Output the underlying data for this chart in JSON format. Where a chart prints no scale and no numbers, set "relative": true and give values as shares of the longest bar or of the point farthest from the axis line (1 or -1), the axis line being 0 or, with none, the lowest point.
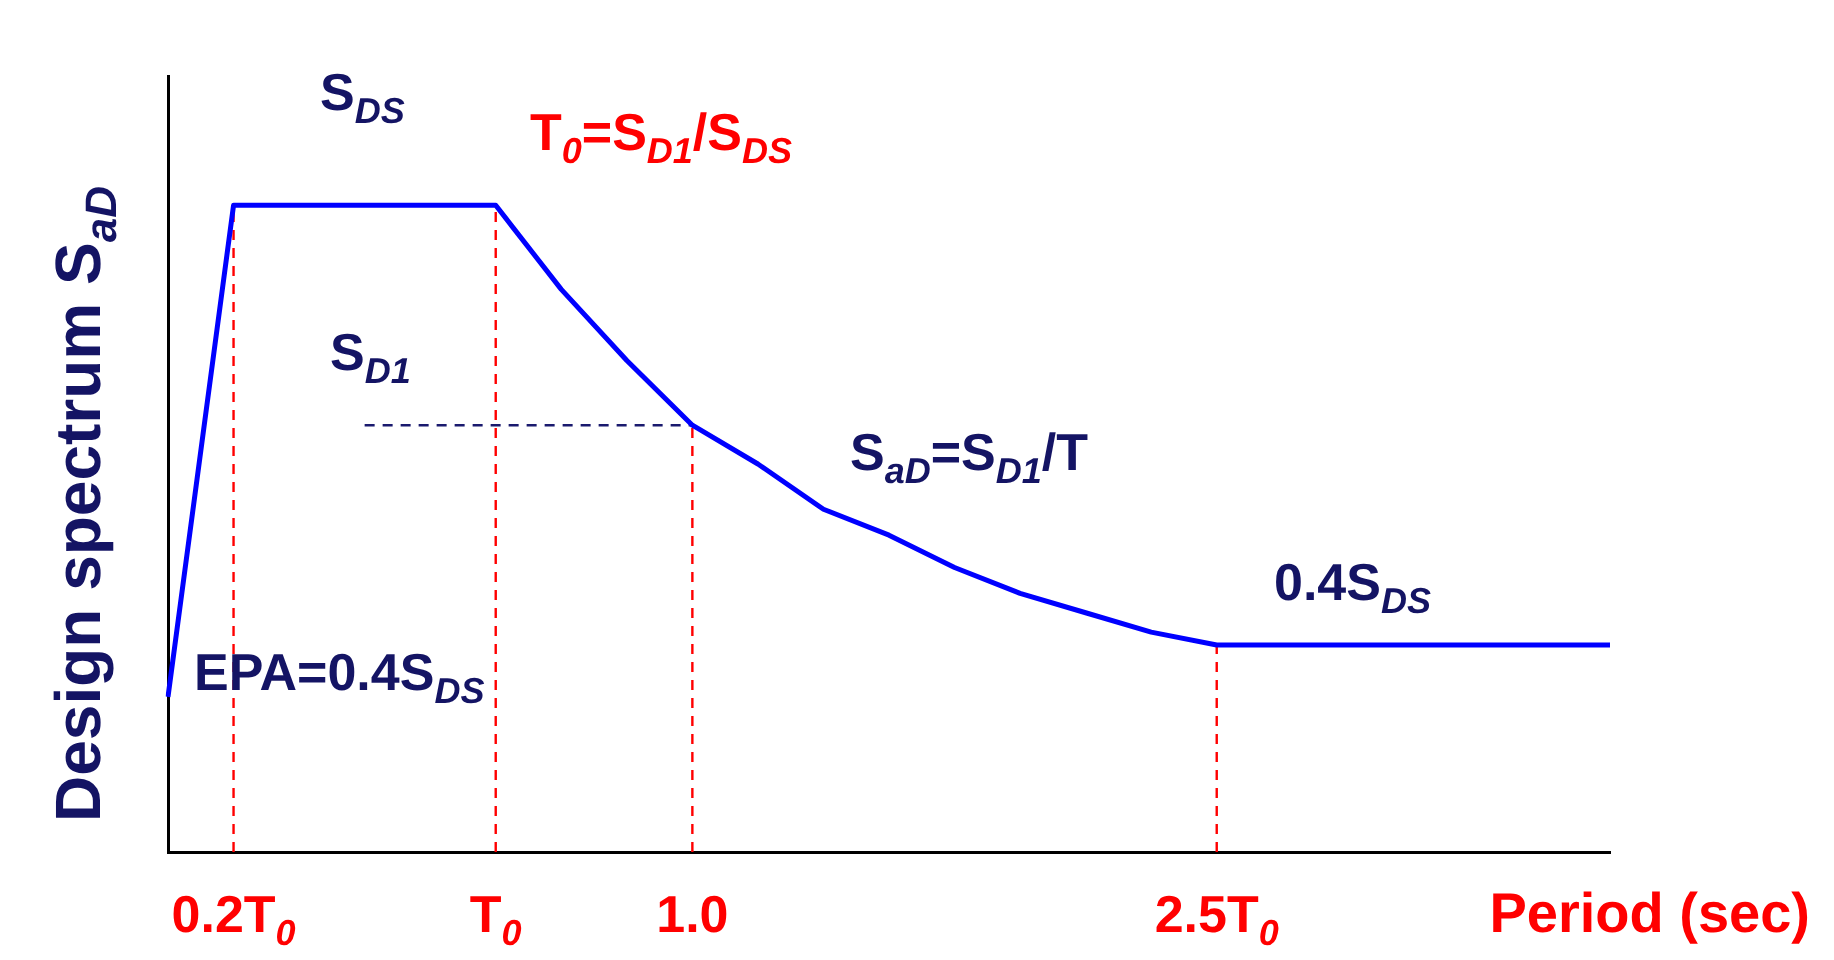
{
  "chart_data": {
    "type": "line",
    "relative": true,
    "ylabel": "Design spectrum S$_{aD}$",
    "xlabel": "Period (sec)",
    "categories": [
      null,
      "0.2T$_{0}$",
      null,
      null,
      null,
      "T$_{0}$",
      null,
      null,
      "1.0",
      null,
      null,
      null,
      null,
      null,
      null,
      null,
      "2.5T$_{0}$",
      null,
      null,
      null,
      null,
      null,
      null
    ],
    "grid": false,
    "legend": false,
    "marker": "none",
    "series": [
      {
        "values": [
          0.24,
          1,
          1,
          1,
          1,
          1,
          0.87,
          0.76,
          0.66,
          0.6,
          0.53,
          0.49,
          0.44,
          0.4,
          0.37,
          0.34,
          0.32,
          0.32,
          0.32,
          0.32,
          0.32,
          0.32,
          0.32
        ],
        "color": "#0000ff",
        "line_style": "solid"
      },
      {
        "values": [
          null,
          null,
          null,
          0.66,
          0.66,
          0.66,
          0.66,
          0.66,
          0.66,
          null,
          null,
          null,
          null,
          null,
          null,
          null,
          null,
          null,
          null,
          null,
          null,
          null,
          null
        ],
        "color": "#1a1a6e",
        "line_style": "dashed"
      }
    ],
    "ref_lines": [
      {
        "axis": "x",
        "value": "0.2T$_{0}$",
        "color": "#ff0000",
        "line_style": "dashed"
      },
      {
        "axis": "x",
        "value": "T$_{0}$",
        "color": "#ff0000",
        "line_style": "dashed"
      },
      {
        "axis": "x",
        "value": "1.0",
        "color": "#ff0000",
        "line_style": "dashed"
      },
      {
        "axis": "x",
        "value": "2.5T$_{0}$",
        "color": "#ff0000",
        "line_style": "dashed"
      }
    ],
    "annotations": [
      "S$_{DS}$",
      "T$_{0}$=S$_{D1}$/S$_{DS}$",
      "S$_{D1}$",
      "S$_{aD}$=S$_{D1}$/T",
      "0.4S$_{DS}$",
      "EPA=0.4S$_{DS}$"
    ]
  }
}
